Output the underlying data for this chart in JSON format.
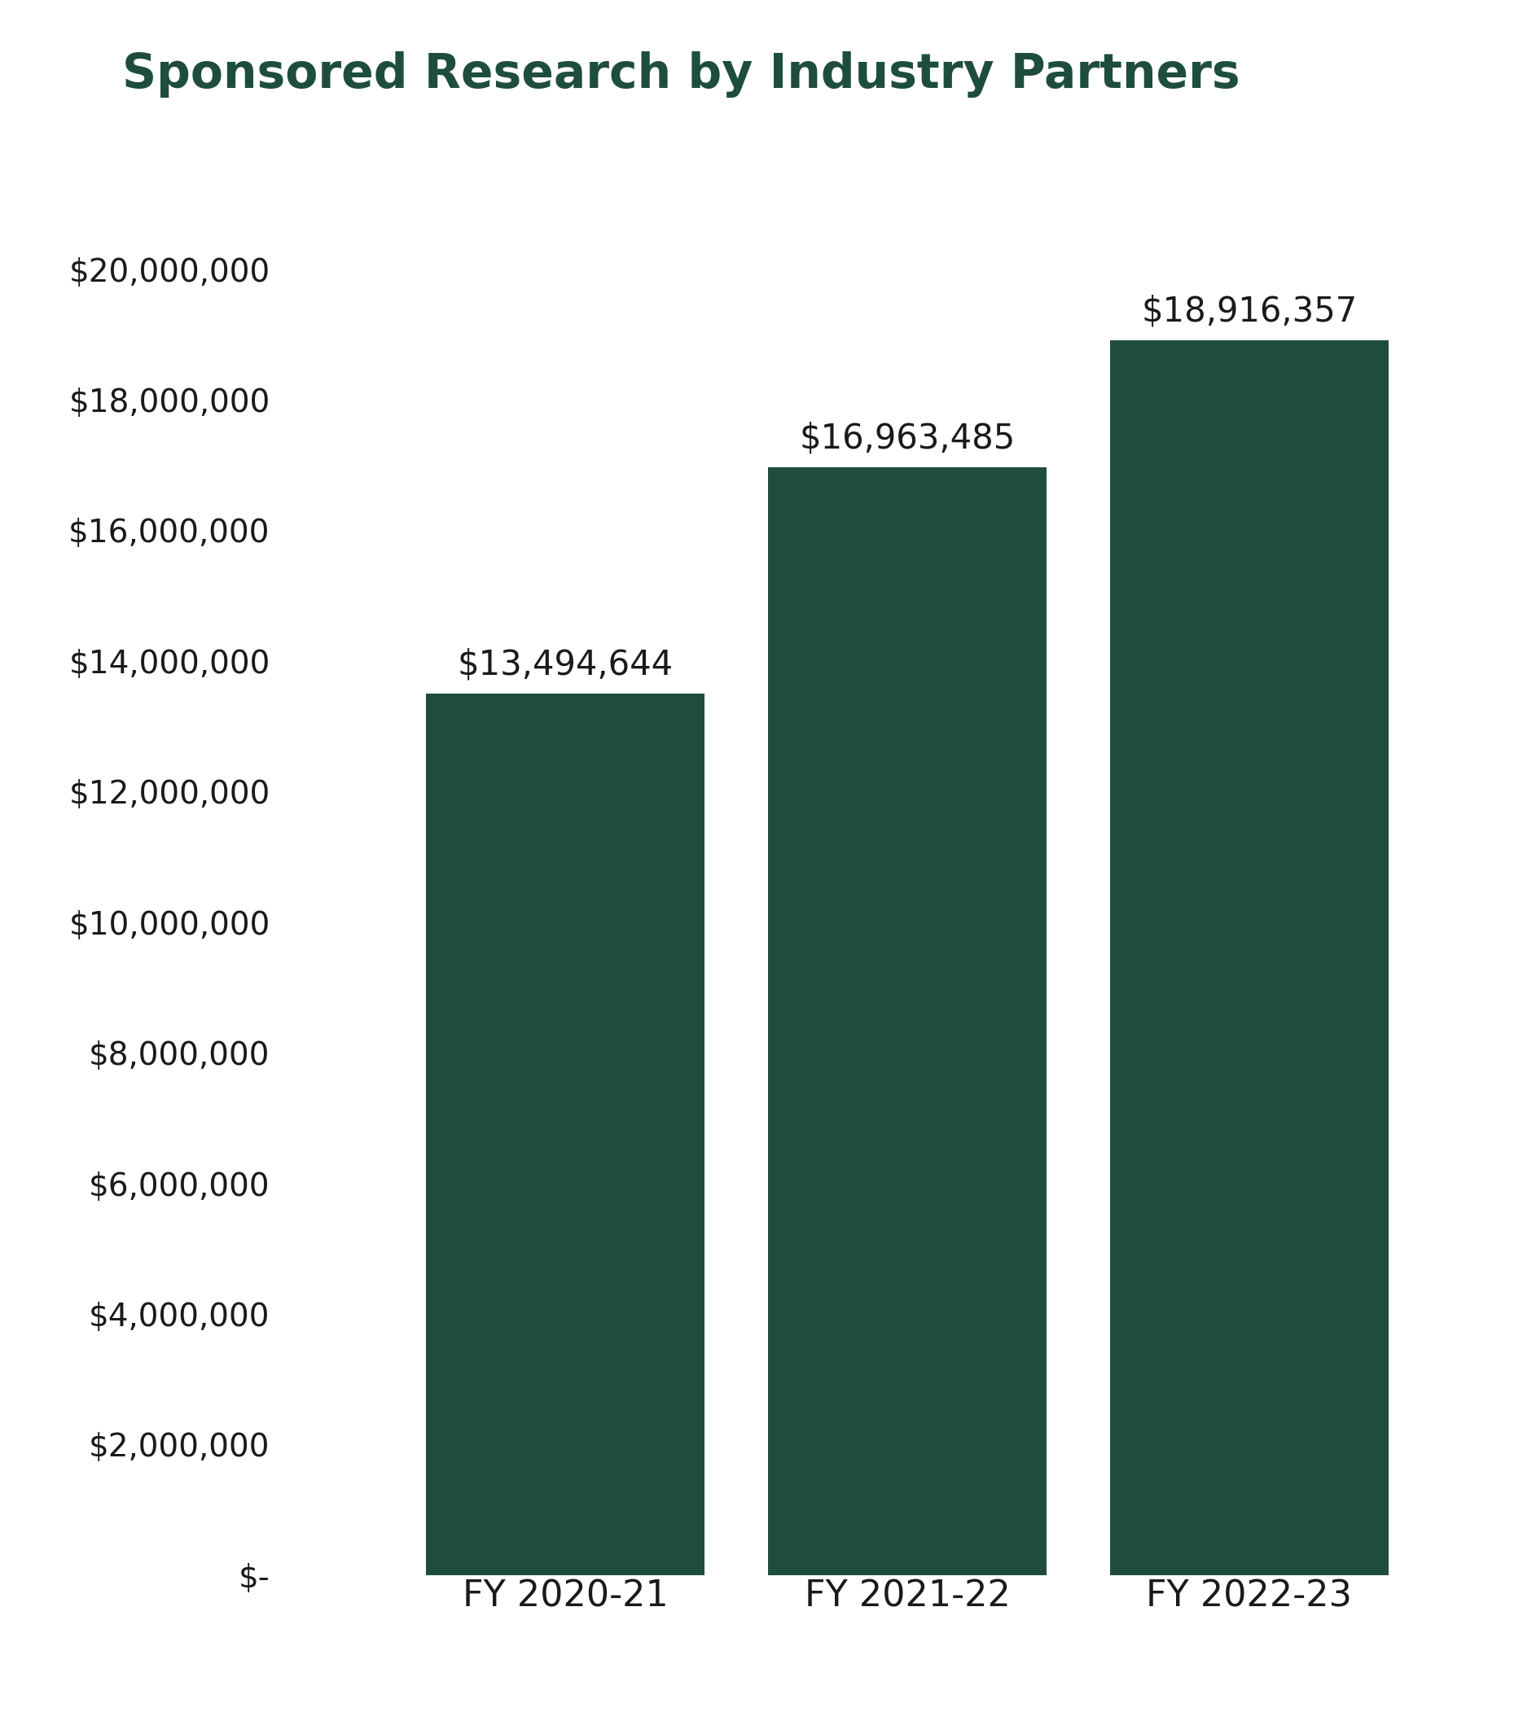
{
  "title": "Sponsored Research by Industry Partners",
  "categories": [
    "FY 2020-21",
    "FY 2021-22",
    "FY 2022-23"
  ],
  "values": [
    13494644,
    16963485,
    18916357
  ],
  "bar_labels": [
    "$13,494,644",
    "$16,963,485",
    "$18,916,357"
  ],
  "bar_color": "#1e4d3f",
  "title_color": "#1e4d3f",
  "text_color": "#1a1a1a",
  "ytick_labels": [
    "$-",
    "$2,000,000",
    "$4,000,000",
    "$6,000,000",
    "$8,000,000",
    "$10,000,000",
    "$12,000,000",
    "$14,000,000",
    "$16,000,000",
    "$18,000,000",
    "$20,000,000"
  ],
  "ytick_values": [
    0,
    2000000,
    4000000,
    6000000,
    8000000,
    10000000,
    12000000,
    14000000,
    16000000,
    18000000,
    20000000
  ],
  "ylim": [
    0,
    21500000
  ],
  "background_color": "#ffffff",
  "title_fontsize": 42,
  "tick_fontsize": 28,
  "label_fontsize": 30,
  "xtick_fontsize": 32,
  "bar_width": 0.22,
  "x_positions": [
    0.38,
    0.65,
    0.92
  ]
}
